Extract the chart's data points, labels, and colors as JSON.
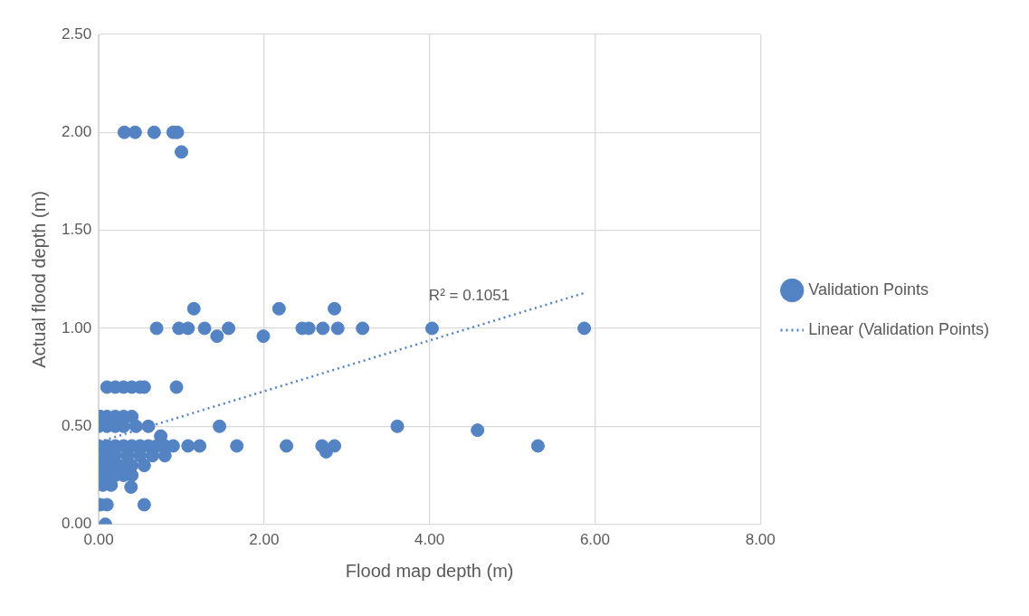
{
  "chart_data": {
    "type": "scatter",
    "xlabel": "Flood map depth (m)",
    "ylabel": "Actual flood depth (m)",
    "xlim": [
      0,
      8
    ],
    "xticks": [
      {
        "value": 0,
        "label": "0.00"
      },
      {
        "value": 2,
        "label": "2.00"
      },
      {
        "value": 4,
        "label": "4.00"
      },
      {
        "value": 6,
        "label": "6.00"
      },
      {
        "value": 8,
        "label": "8.00"
      }
    ],
    "ylim": [
      0,
      2.5
    ],
    "yticks": [
      {
        "value": 0,
        "label": "0.00"
      },
      {
        "value": 0.5,
        "label": "0.50"
      },
      {
        "value": 1,
        "label": "1.00"
      },
      {
        "value": 1.5,
        "label": "1.50"
      },
      {
        "value": 2,
        "label": "2.00"
      },
      {
        "value": 2.5,
        "label": "2.50"
      }
    ],
    "grid": true,
    "legend": "right",
    "marker": "circle",
    "series": [
      {
        "name": "Validation Points",
        "color": "#5483c4",
        "x": [
          0.31,
          0.44,
          0.67,
          0.9,
          0.95,
          1.0,
          1.15,
          2.18,
          2.85,
          0.7,
          0.97,
          1.08,
          1.28,
          1.57,
          2.46,
          2.54,
          2.71,
          2.89,
          3.19,
          4.03,
          5.87,
          1.43,
          1.99,
          0.1,
          0.2,
          0.3,
          0.4,
          0.5,
          0.55,
          0.94,
          1.46,
          3.61,
          4.58,
          1.67,
          2.27,
          2.7,
          2.85,
          2.75,
          5.31,
          1.22,
          1.08,
          0.02,
          0.1,
          0.2,
          0.3,
          0.4,
          0.0,
          0.1,
          0.2,
          0.3,
          0.45,
          0.6,
          0.75,
          0.0,
          0.1,
          0.2,
          0.3,
          0.4,
          0.5,
          0.6,
          0.7,
          0.8,
          0.9,
          0.0,
          0.1,
          0.2,
          0.35,
          0.5,
          0.65,
          0.8,
          0.0,
          0.1,
          0.2,
          0.3,
          0.4,
          0.0,
          0.1,
          0.2,
          0.3,
          0.4,
          0.55,
          0.05,
          0.15,
          0.39,
          0.02,
          0.1,
          0.55,
          0.08
        ],
        "values": [
          2.0,
          2.0,
          2.0,
          2.0,
          2.0,
          1.9,
          1.1,
          1.1,
          1.1,
          1.0,
          1.0,
          1.0,
          1.0,
          1.0,
          1.0,
          1.0,
          1.0,
          1.0,
          1.0,
          1.0,
          1.0,
          0.96,
          0.96,
          0.7,
          0.7,
          0.7,
          0.7,
          0.7,
          0.7,
          0.7,
          0.5,
          0.5,
          0.48,
          0.4,
          0.4,
          0.4,
          0.4,
          0.37,
          0.4,
          0.4,
          0.4,
          0.55,
          0.55,
          0.55,
          0.55,
          0.55,
          0.5,
          0.5,
          0.5,
          0.5,
          0.5,
          0.5,
          0.45,
          0.4,
          0.4,
          0.4,
          0.4,
          0.4,
          0.4,
          0.4,
          0.4,
          0.4,
          0.4,
          0.35,
          0.35,
          0.35,
          0.35,
          0.35,
          0.35,
          0.35,
          0.3,
          0.3,
          0.3,
          0.3,
          0.3,
          0.25,
          0.25,
          0.25,
          0.25,
          0.25,
          0.3,
          0.2,
          0.2,
          0.19,
          0.1,
          0.1,
          0.1,
          0.0
        ]
      },
      {
        "name": "Linear (Validation Points)",
        "type": "line",
        "color": "#5483c4",
        "line_style": "dotted",
        "marker": "none",
        "x": [
          0,
          5.87
        ],
        "values": [
          0.42,
          1.18
        ]
      }
    ],
    "annotations": [
      "R² = 0.1051"
    ]
  }
}
